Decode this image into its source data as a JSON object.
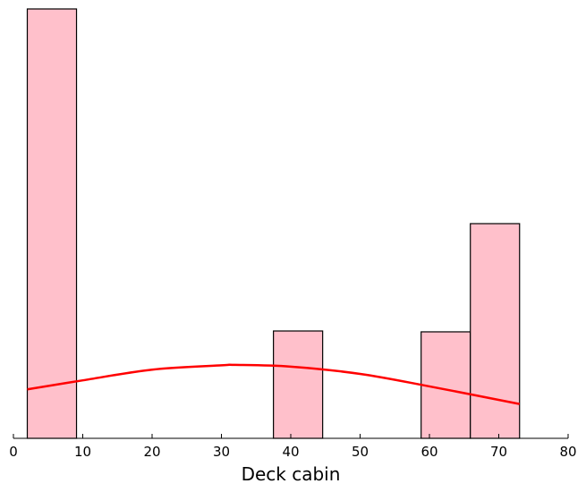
{
  "chart_data": {
    "type": "bar",
    "subtype": "histogram-with-density-curve",
    "title": "",
    "xlabel": "Deck cabin",
    "ylabel": "",
    "xlim": [
      0,
      80
    ],
    "x_ticks": [
      0,
      10,
      20,
      30,
      40,
      50,
      60,
      70,
      80
    ],
    "y_axis_visible": false,
    "grid": false,
    "legend": "none",
    "bins": [
      {
        "x0": 2.0,
        "x1": 9.1,
        "height": 1.0
      },
      {
        "x0": 37.5,
        "x1": 44.6,
        "height": 0.25
      },
      {
        "x0": 58.8,
        "x1": 65.9,
        "height": 0.248
      },
      {
        "x0": 65.9,
        "x1": 73.0,
        "height": 0.5
      }
    ],
    "bar_color": "#ffc0cb",
    "bar_edge_color": "#000000",
    "curve": {
      "color": "#ff0000",
      "x": [
        2,
        10,
        20,
        30,
        32,
        40,
        50,
        60,
        73
      ],
      "y": [
        0.114,
        0.135,
        0.16,
        0.17,
        0.171,
        0.167,
        0.15,
        0.121,
        0.08
      ]
    }
  }
}
